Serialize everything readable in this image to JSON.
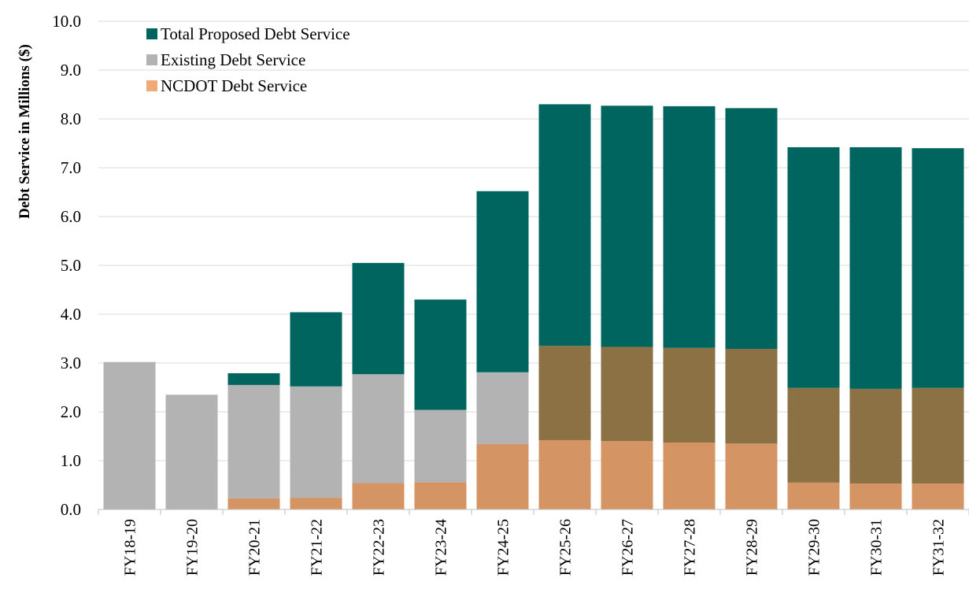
{
  "chart_data": {
    "type": "bar",
    "stacked": true,
    "title": "",
    "xlabel": "",
    "ylabel": "Debt Service in Millions ($)",
    "ylim": [
      0,
      10
    ],
    "yticks": [
      "0.0",
      "1.0",
      "2.0",
      "3.0",
      "4.0",
      "5.0",
      "6.0",
      "7.0",
      "8.0",
      "9.0",
      "10.0"
    ],
    "grid": true,
    "legend_position": "top-left",
    "categories": [
      "FY18-19",
      "FY19-20",
      "FY20-21",
      "FY21-22",
      "FY22-23",
      "FY23-24",
      "FY24-25",
      "FY25-26",
      "FY26-27",
      "FY27-28",
      "FY28-29",
      "FY29-30",
      "FY30-31",
      "FY31-32"
    ],
    "totals": [
      3.02,
      2.35,
      2.79,
      4.04,
      5.05,
      4.3,
      6.52,
      8.3,
      8.27,
      8.26,
      8.22,
      7.42,
      7.42,
      7.4
    ],
    "segments": {
      "ncdot": [
        0,
        0,
        0.23,
        0.24,
        0.54,
        0.56,
        1.34,
        1.42,
        1.4,
        1.37,
        1.35,
        0.55,
        0.53,
        0.53
      ],
      "existing": [
        3.02,
        2.35,
        2.32,
        2.28,
        2.23,
        1.48,
        1.47,
        0,
        0,
        0,
        0,
        0,
        0,
        0
      ],
      "overlap": [
        0,
        0,
        0,
        0,
        0,
        0,
        0,
        1.93,
        1.93,
        1.94,
        1.94,
        1.94,
        1.94,
        1.96
      ]
    },
    "series": [
      {
        "name": "Total Proposed Debt Service",
        "color": "#00655f"
      },
      {
        "name": "Existing Debt Service",
        "color": "#b3b3b3"
      },
      {
        "name": "NCDOT Debt Service",
        "color": "#f0aa78"
      }
    ],
    "segment_colors": {
      "ncdot": "#d59463",
      "existing": "#b3b3b3",
      "overlap": "#8b7144",
      "total": "#00655f"
    }
  }
}
